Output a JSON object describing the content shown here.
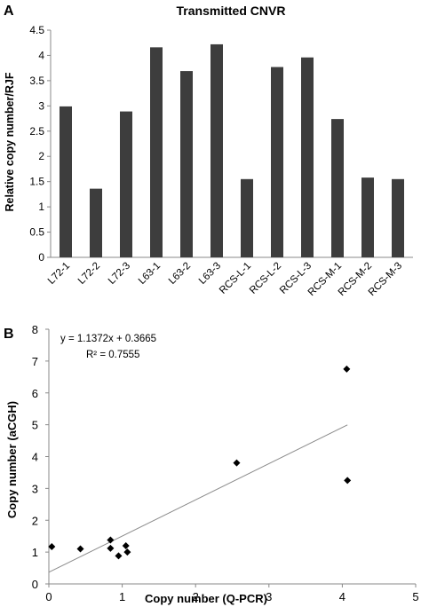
{
  "panels": {
    "a": {
      "letter": "A"
    },
    "b": {
      "letter": "B"
    }
  },
  "chart_data": [
    {
      "type": "bar",
      "title": "Transmitted CNVR",
      "xlabel": "",
      "ylabel": "Relative copy number/RJF",
      "ylim": [
        0,
        4.5
      ],
      "yticks": [
        "0",
        "0.5",
        "1",
        "1.5",
        "2",
        "2.5",
        "3",
        "3.5",
        "4",
        "4.5"
      ],
      "categories": [
        "L72-1",
        "L72-2",
        "L72-3",
        "L63-1",
        "L63-2",
        "L63-3",
        "RCS-L-1",
        "RCS-L-2",
        "RCS-L-3",
        "RCS-M-1",
        "RCS-M-2",
        "RCS-M-3"
      ],
      "values": [
        2.99,
        1.36,
        2.89,
        4.16,
        3.69,
        4.22,
        1.55,
        3.77,
        3.96,
        2.74,
        1.58,
        1.55
      ],
      "bar_color": "#3d3d3d",
      "grid": false,
      "legend": "none"
    },
    {
      "type": "scatter",
      "title": "",
      "xlabel": "Copy number (Q-PCR)",
      "ylabel": "Copy number (aCGH)",
      "xlim": [
        0,
        5
      ],
      "ylim": [
        0,
        8
      ],
      "xticks": [
        "0",
        "1",
        "2",
        "3",
        "4",
        "5"
      ],
      "yticks": [
        "0",
        "1",
        "2",
        "3",
        "4",
        "5",
        "6",
        "7",
        "8"
      ],
      "points": [
        {
          "x": 0.04,
          "y": 1.17
        },
        {
          "x": 0.43,
          "y": 1.1
        },
        {
          "x": 0.84,
          "y": 1.38
        },
        {
          "x": 0.84,
          "y": 1.12
        },
        {
          "x": 0.95,
          "y": 0.88
        },
        {
          "x": 1.05,
          "y": 1.2
        },
        {
          "x": 1.07,
          "y": 1.0
        },
        {
          "x": 2.56,
          "y": 3.8
        },
        {
          "x": 4.06,
          "y": 6.75
        },
        {
          "x": 4.07,
          "y": 3.25
        }
      ],
      "trendline": {
        "slope": 1.1372,
        "intercept": 0.3665,
        "x_range": [
          0,
          4.07
        ],
        "equation": "y = 1.1372x + 0.3665",
        "r_squared": "R² = 0.7555",
        "color": "#8c8c8c"
      },
      "marker": "diamond",
      "marker_color": "#000000",
      "grid": false,
      "legend": "none"
    }
  ]
}
